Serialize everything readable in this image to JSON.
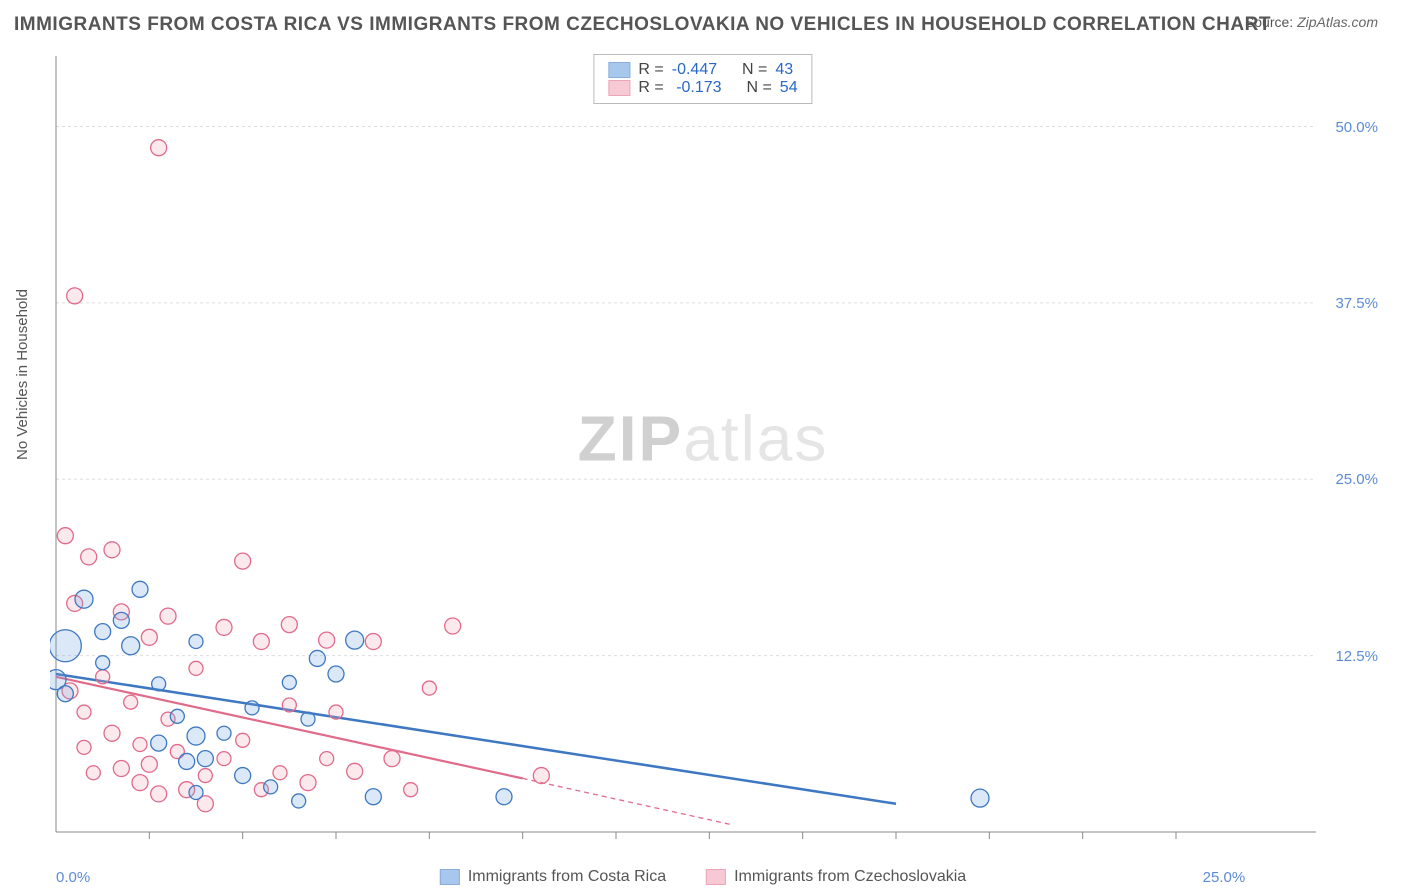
{
  "title": "IMMIGRANTS FROM COSTA RICA VS IMMIGRANTS FROM CZECHOSLOVAKIA NO VEHICLES IN HOUSEHOLD CORRELATION CHART",
  "source_label": "Source:",
  "source_value": "ZipAtlas.com",
  "y_axis_label": "No Vehicles in Household",
  "watermark_a": "ZIP",
  "watermark_b": "atlas",
  "chart": {
    "type": "scatter",
    "xlim": [
      0,
      27
    ],
    "ylim": [
      0,
      55
    ],
    "x_ticks": [
      0,
      25
    ],
    "x_tick_labels": [
      "0.0%",
      "25.0%"
    ],
    "x_minor_ticks": [
      2,
      4,
      6,
      8,
      10,
      12,
      14,
      16,
      18,
      20,
      22,
      24
    ],
    "y_ticks": [
      12.5,
      25.0,
      37.5,
      50.0
    ],
    "y_tick_labels": [
      "12.5%",
      "25.0%",
      "37.5%",
      "50.0%"
    ],
    "background_color": "#ffffff",
    "grid_color": "#dddddd",
    "axis_color": "#888888",
    "tick_label_color": "#5b8bd4",
    "marker_stroke_width": 1.3,
    "marker_fill_opacity": 0.25,
    "series": [
      {
        "name": "Immigrants from Costa Rica",
        "color": "#6fa3e0",
        "stroke": "#3e78c2",
        "R": "-0.447",
        "N": "43",
        "trend": {
          "x1": 0,
          "y1": 11.2,
          "x2": 18,
          "y2": 2.0,
          "width": 2.5,
          "dash": ""
        },
        "points": [
          {
            "x": 0.2,
            "y": 13.2,
            "r": 16
          },
          {
            "x": 0.0,
            "y": 10.8,
            "r": 10
          },
          {
            "x": 0.2,
            "y": 9.8,
            "r": 8
          },
          {
            "x": 0.6,
            "y": 16.5,
            "r": 9
          },
          {
            "x": 1.0,
            "y": 14.2,
            "r": 8
          },
          {
            "x": 1.0,
            "y": 12.0,
            "r": 7
          },
          {
            "x": 1.4,
            "y": 15.0,
            "r": 8
          },
          {
            "x": 1.6,
            "y": 13.2,
            "r": 9
          },
          {
            "x": 1.8,
            "y": 17.2,
            "r": 8
          },
          {
            "x": 2.2,
            "y": 10.5,
            "r": 7
          },
          {
            "x": 2.2,
            "y": 6.3,
            "r": 8
          },
          {
            "x": 2.6,
            "y": 8.2,
            "r": 7
          },
          {
            "x": 2.8,
            "y": 5.0,
            "r": 8
          },
          {
            "x": 3.0,
            "y": 13.5,
            "r": 7
          },
          {
            "x": 3.0,
            "y": 6.8,
            "r": 9
          },
          {
            "x": 3.0,
            "y": 2.8,
            "r": 7
          },
          {
            "x": 3.2,
            "y": 5.2,
            "r": 8
          },
          {
            "x": 3.6,
            "y": 7.0,
            "r": 7
          },
          {
            "x": 4.0,
            "y": 4.0,
            "r": 8
          },
          {
            "x": 4.2,
            "y": 8.8,
            "r": 7
          },
          {
            "x": 4.6,
            "y": 3.2,
            "r": 7
          },
          {
            "x": 5.0,
            "y": 10.6,
            "r": 7
          },
          {
            "x": 5.2,
            "y": 2.2,
            "r": 7
          },
          {
            "x": 5.4,
            "y": 8.0,
            "r": 7
          },
          {
            "x": 5.6,
            "y": 12.3,
            "r": 8
          },
          {
            "x": 6.0,
            "y": 11.2,
            "r": 8
          },
          {
            "x": 6.4,
            "y": 13.6,
            "r": 9
          },
          {
            "x": 6.8,
            "y": 2.5,
            "r": 8
          },
          {
            "x": 9.6,
            "y": 2.5,
            "r": 8
          },
          {
            "x": 19.8,
            "y": 2.4,
            "r": 9
          }
        ]
      },
      {
        "name": "Immigrants from Czechoslovakia",
        "color": "#f2a6b8",
        "stroke": "#e06b8a",
        "R": "-0.173",
        "N": "54",
        "trend_solid": {
          "x1": 0,
          "y1": 11.0,
          "x2": 10,
          "y2": 3.8,
          "width": 2.2
        },
        "trend_dash": {
          "x1": 10,
          "y1": 3.8,
          "x2": 14.5,
          "y2": 0.5,
          "width": 1.3,
          "dash": "5,4"
        },
        "points": [
          {
            "x": 0.4,
            "y": 38.0,
            "r": 8
          },
          {
            "x": 2.2,
            "y": 48.5,
            "r": 8
          },
          {
            "x": 0.2,
            "y": 21.0,
            "r": 8
          },
          {
            "x": 0.7,
            "y": 19.5,
            "r": 8
          },
          {
            "x": 0.4,
            "y": 16.2,
            "r": 8
          },
          {
            "x": 1.2,
            "y": 20.0,
            "r": 8
          },
          {
            "x": 0.3,
            "y": 10.0,
            "r": 8
          },
          {
            "x": 0.6,
            "y": 8.5,
            "r": 7
          },
          {
            "x": 0.6,
            "y": 6.0,
            "r": 7
          },
          {
            "x": 0.8,
            "y": 4.2,
            "r": 7
          },
          {
            "x": 1.0,
            "y": 11.0,
            "r": 7
          },
          {
            "x": 1.2,
            "y": 7.0,
            "r": 8
          },
          {
            "x": 1.4,
            "y": 15.6,
            "r": 8
          },
          {
            "x": 1.4,
            "y": 4.5,
            "r": 8
          },
          {
            "x": 1.6,
            "y": 9.2,
            "r": 7
          },
          {
            "x": 1.8,
            "y": 3.5,
            "r": 8
          },
          {
            "x": 1.8,
            "y": 6.2,
            "r": 7
          },
          {
            "x": 2.0,
            "y": 13.8,
            "r": 8
          },
          {
            "x": 2.0,
            "y": 4.8,
            "r": 8
          },
          {
            "x": 2.2,
            "y": 2.7,
            "r": 8
          },
          {
            "x": 2.4,
            "y": 15.3,
            "r": 8
          },
          {
            "x": 2.4,
            "y": 8.0,
            "r": 7
          },
          {
            "x": 2.6,
            "y": 5.7,
            "r": 7
          },
          {
            "x": 2.8,
            "y": 3.0,
            "r": 8
          },
          {
            "x": 3.0,
            "y": 11.6,
            "r": 7
          },
          {
            "x": 3.2,
            "y": 4.0,
            "r": 7
          },
          {
            "x": 3.2,
            "y": 2.0,
            "r": 8
          },
          {
            "x": 3.6,
            "y": 14.5,
            "r": 8
          },
          {
            "x": 3.6,
            "y": 5.2,
            "r": 7
          },
          {
            "x": 4.0,
            "y": 19.2,
            "r": 8
          },
          {
            "x": 4.0,
            "y": 6.5,
            "r": 7
          },
          {
            "x": 4.4,
            "y": 13.5,
            "r": 8
          },
          {
            "x": 4.4,
            "y": 3.0,
            "r": 7
          },
          {
            "x": 4.8,
            "y": 4.2,
            "r": 7
          },
          {
            "x": 5.0,
            "y": 14.7,
            "r": 8
          },
          {
            "x": 5.0,
            "y": 9.0,
            "r": 7
          },
          {
            "x": 5.4,
            "y": 3.5,
            "r": 8
          },
          {
            "x": 5.8,
            "y": 13.6,
            "r": 8
          },
          {
            "x": 5.8,
            "y": 5.2,
            "r": 7
          },
          {
            "x": 6.0,
            "y": 8.5,
            "r": 7
          },
          {
            "x": 6.4,
            "y": 4.3,
            "r": 8
          },
          {
            "x": 6.8,
            "y": 13.5,
            "r": 8
          },
          {
            "x": 7.2,
            "y": 5.2,
            "r": 8
          },
          {
            "x": 7.6,
            "y": 3.0,
            "r": 7
          },
          {
            "x": 8.0,
            "y": 10.2,
            "r": 7
          },
          {
            "x": 8.5,
            "y": 14.6,
            "r": 8
          },
          {
            "x": 10.4,
            "y": 4.0,
            "r": 8
          }
        ]
      }
    ],
    "legend_top": {
      "r_label": "R =",
      "n_label": "N ="
    },
    "legend_bottom": [
      {
        "series": 0
      },
      {
        "series": 1
      }
    ]
  }
}
